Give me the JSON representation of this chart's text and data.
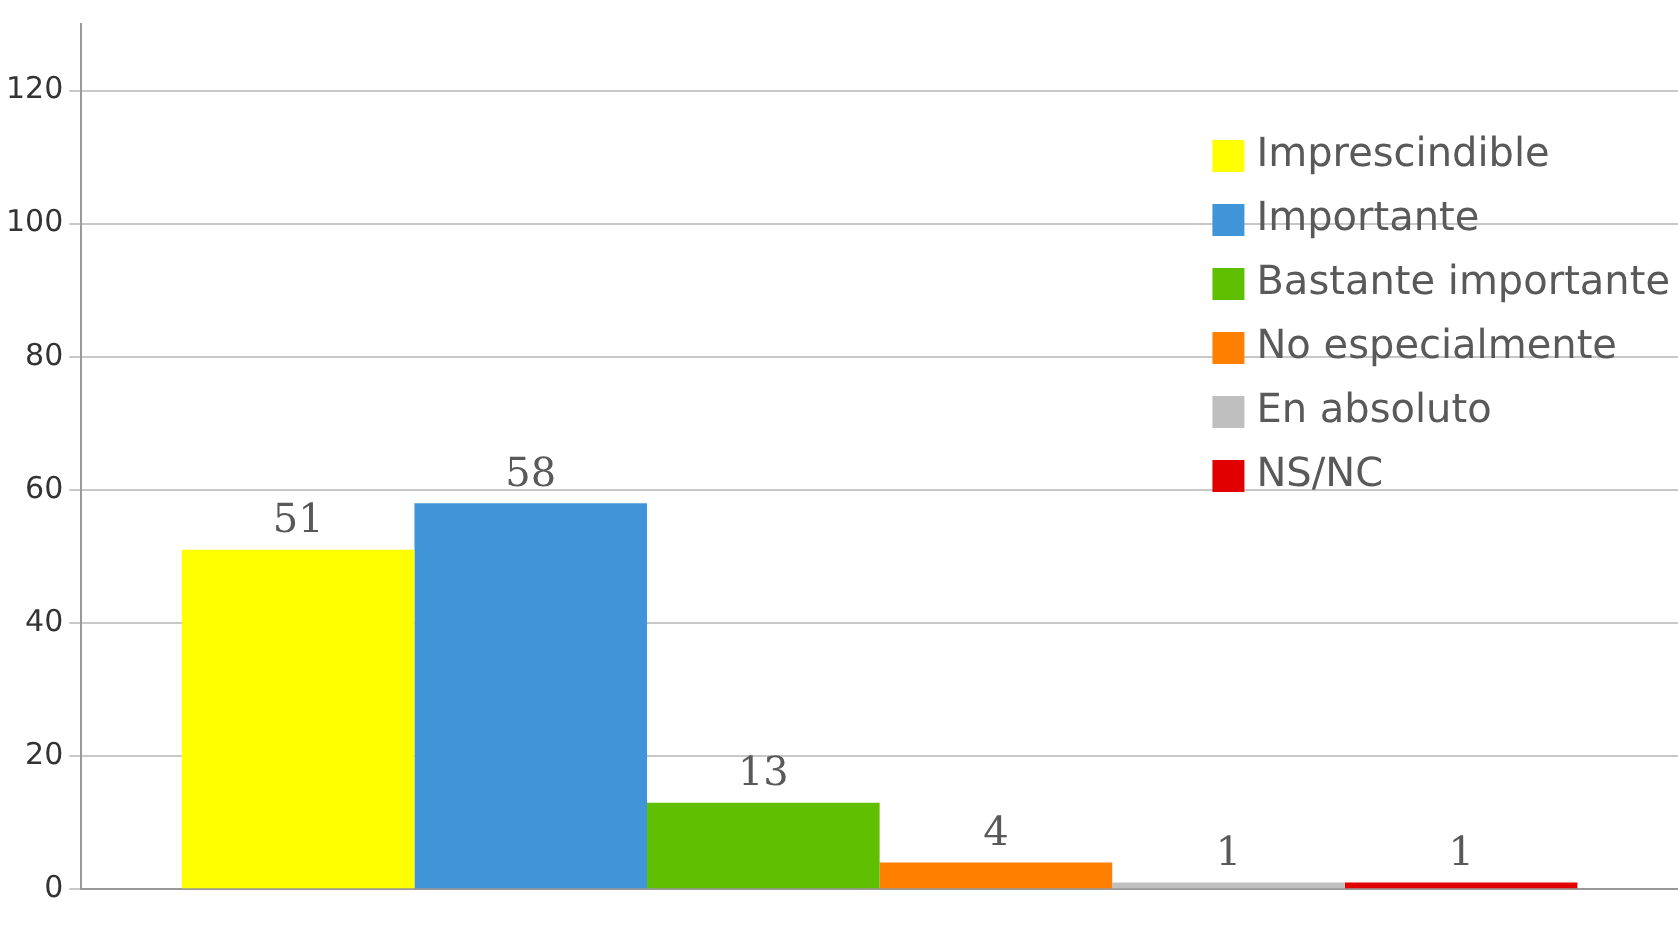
{
  "chart_data": {
    "type": "bar",
    "categories": [
      null
    ],
    "series": [
      {
        "name": "Imprescindible",
        "color": "#ffff00",
        "values": [
          51
        ]
      },
      {
        "name": "Importante",
        "color": "#4095d8",
        "values": [
          58
        ]
      },
      {
        "name": "Bastante importante",
        "color": "#5fbf00",
        "values": [
          13
        ]
      },
      {
        "name": "No especialmente",
        "color": "#ff7f00",
        "values": [
          4
        ]
      },
      {
        "name": "En absoluto",
        "color": "#bfbfbf",
        "values": [
          1
        ]
      },
      {
        "name": "NS/NC",
        "color": "#e00000",
        "values": [
          1
        ]
      }
    ],
    "ylim": [
      0,
      130
    ],
    "yticks": [
      0,
      20,
      40,
      60,
      80,
      100,
      120
    ],
    "grid": "y",
    "legend": "top right",
    "data_labels": true
  }
}
